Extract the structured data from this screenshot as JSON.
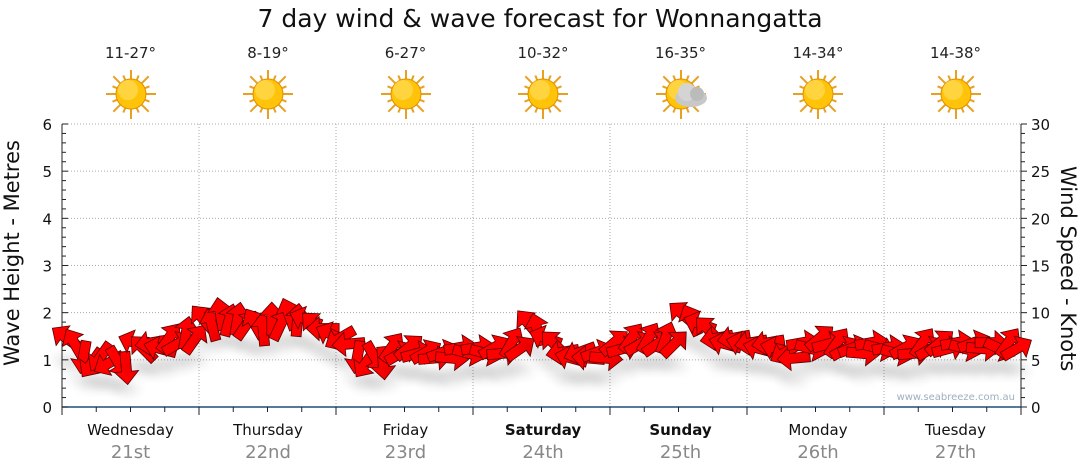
{
  "title": "7 day wind & wave forecast for Wonnangatta",
  "days": [
    {
      "name": "Wednesday",
      "date": "21st",
      "temp": "11-27°",
      "icon": "sun-icon",
      "bold": false
    },
    {
      "name": "Thursday",
      "date": "22nd",
      "temp": "8-19°",
      "icon": "sun-icon",
      "bold": false
    },
    {
      "name": "Friday",
      "date": "23rd",
      "temp": "6-27°",
      "icon": "sun-icon",
      "bold": false
    },
    {
      "name": "Saturday",
      "date": "24th",
      "temp": "10-32°",
      "icon": "sun-icon",
      "bold": true
    },
    {
      "name": "Sunday",
      "date": "25th",
      "temp": "16-35°",
      "icon": "partly-cloudy-icon",
      "bold": true
    },
    {
      "name": "Monday",
      "date": "26th",
      "temp": "14-34°",
      "icon": "sun-icon",
      "bold": false
    },
    {
      "name": "Tuesday",
      "date": "27th",
      "temp": "14-38°",
      "icon": "sun-icon",
      "bold": false
    }
  ],
  "watermark": "www.seabreeze.com.au",
  "colors": {
    "arrow": "#ff0000",
    "axis": "#1f4f7a",
    "grid": "#999999"
  },
  "chart_data": {
    "type": "scatter",
    "title": "7 day wind & wave forecast for Wonnangatta",
    "ylabel_left": "Wave Height - Metres",
    "ylabel_right": "Wind Speed - Knots",
    "ylim_left": [
      0,
      6
    ],
    "ylim_right": [
      0,
      30
    ],
    "yticks_left": [
      "0",
      "1",
      "2",
      "3",
      "4",
      "5",
      "6"
    ],
    "yticks_right": [
      "0",
      "5",
      "10",
      "15",
      "20",
      "25",
      "30"
    ],
    "grid": true,
    "points_per_day": 8,
    "wind_knots": [
      7,
      5,
      5,
      4.5,
      6.5,
      6.5,
      7,
      7.5,
      9,
      9.5,
      9,
      8.5,
      9,
      9.5,
      9,
      8,
      7,
      5,
      5,
      6,
      6,
      5.5,
      5.5,
      6,
      6,
      6,
      6.5,
      8.5,
      7,
      5.5,
      5.5,
      5.5,
      6.5,
      7,
      7,
      7,
      9.5,
      8.5,
      7,
      7,
      6.5,
      6.5,
      5.5,
      6.5,
      7,
      6.5,
      6,
      6.5,
      6,
      6,
      6.5,
      6.5,
      6.5,
      6.5,
      6.5,
      6.5
    ],
    "wind_dir_deg": [
      315,
      200,
      225,
      160,
      300,
      270,
      45,
      20,
      330,
      0,
      20,
      340,
      10,
      350,
      300,
      280,
      250,
      200,
      160,
      45,
      60,
      70,
      80,
      90,
      90,
      70,
      40,
      330,
      300,
      270,
      260,
      80,
      60,
      45,
      40,
      30,
      320,
      300,
      270,
      270,
      270,
      270,
      250,
      90,
      60,
      45,
      80,
      90,
      90,
      70,
      45,
      60,
      90,
      80,
      100,
      45
    ]
  }
}
